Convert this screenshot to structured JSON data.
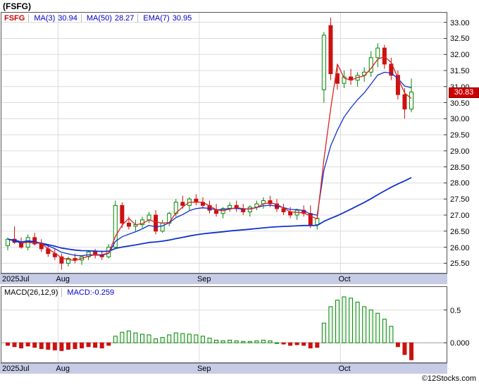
{
  "page": {
    "title": "(FSFG)",
    "footer": "©12Stocks.com"
  },
  "colors": {
    "up": "#008800",
    "up_fill": "#ffffff",
    "down": "#cc1111",
    "ma_fast": "#dd2222",
    "ma_slow": "#1133cc",
    "ema": "#1133cc",
    "band": "#c7cce6",
    "grid": "#dcdcdc",
    "zero_line": "#999999",
    "last_price_bg": "#cc0000",
    "macd_pos": "#008800",
    "macd_pos_fill": "#eef7ee",
    "macd_neg": "#cc1111"
  },
  "chart_data": [
    {
      "type": "candlestick",
      "title": "FSFG",
      "legend": {
        "symbol": "FSFG",
        "ma3_label": "MA(3)",
        "ma3_value": "30.94",
        "ma50_label": "MA(50)",
        "ma50_value": "28.27",
        "ema7_label": "EMA(7)",
        "ema7_value": "30.95"
      },
      "overlays": [
        "MA(3)",
        "MA(50)",
        "EMA(7)"
      ],
      "ylim": [
        25.2,
        33.3
      ],
      "y_tick_values": [
        33.0,
        32.5,
        32.0,
        31.5,
        31.0,
        30.5,
        30.0,
        29.5,
        29.0,
        28.5,
        28.0,
        27.5,
        27.0,
        26.5,
        26.0,
        25.5
      ],
      "x_ticks": [
        {
          "label": "2025Jul",
          "index": 0
        },
        {
          "label": "Aug",
          "index": 8
        },
        {
          "label": "Sep",
          "index": 29
        },
        {
          "label": "Oct",
          "index": 50
        }
      ],
      "last_price_label": "30.83",
      "candles": [
        [
          26.05,
          26.3,
          25.9,
          26.25
        ],
        [
          26.25,
          26.65,
          26.1,
          26.15
        ],
        [
          26.15,
          26.3,
          25.95,
          26.0
        ],
        [
          26.0,
          26.4,
          25.9,
          26.3
        ],
        [
          26.3,
          26.45,
          26.05,
          26.1
        ],
        [
          26.1,
          26.25,
          25.85,
          25.95
        ],
        [
          25.95,
          26.1,
          25.7,
          25.8
        ],
        [
          25.8,
          25.95,
          25.6,
          25.7
        ],
        [
          25.7,
          25.8,
          25.3,
          25.5
        ],
        [
          25.5,
          25.7,
          25.4,
          25.65
        ],
        [
          25.65,
          25.8,
          25.5,
          25.6
        ],
        [
          25.6,
          25.75,
          25.45,
          25.7
        ],
        [
          25.7,
          25.9,
          25.6,
          25.85
        ],
        [
          25.85,
          25.95,
          25.65,
          25.75
        ],
        [
          25.75,
          25.9,
          25.6,
          25.7
        ],
        [
          25.7,
          26.1,
          25.65,
          26.0
        ],
        [
          26.0,
          27.45,
          25.95,
          27.3
        ],
        [
          27.3,
          27.4,
          26.6,
          26.75
        ],
        [
          26.75,
          26.95,
          26.55,
          26.65
        ],
        [
          26.65,
          26.85,
          26.5,
          26.7
        ],
        [
          26.7,
          26.95,
          26.6,
          26.85
        ],
        [
          26.85,
          27.1,
          26.75,
          27.0
        ],
        [
          27.0,
          27.15,
          26.4,
          26.5
        ],
        [
          26.5,
          26.85,
          26.45,
          26.75
        ],
        [
          26.75,
          27.1,
          26.65,
          27.05
        ],
        [
          27.05,
          27.5,
          26.95,
          27.4
        ],
        [
          27.4,
          27.6,
          27.2,
          27.3
        ],
        [
          27.3,
          27.55,
          27.15,
          27.5
        ],
        [
          27.5,
          27.65,
          27.3,
          27.4
        ],
        [
          27.4,
          27.55,
          27.2,
          27.3
        ],
        [
          27.3,
          27.45,
          27.05,
          27.15
        ],
        [
          27.15,
          27.35,
          26.95,
          27.05
        ],
        [
          27.05,
          27.25,
          26.9,
          27.2
        ],
        [
          27.2,
          27.4,
          27.1,
          27.3
        ],
        [
          27.3,
          27.45,
          27.1,
          27.2
        ],
        [
          27.2,
          27.35,
          27.0,
          27.1
        ],
        [
          27.1,
          27.3,
          26.95,
          27.25
        ],
        [
          27.25,
          27.45,
          27.15,
          27.35
        ],
        [
          27.35,
          27.55,
          27.2,
          27.45
        ],
        [
          27.45,
          27.6,
          27.25,
          27.35
        ],
        [
          27.35,
          27.5,
          27.1,
          27.2
        ],
        [
          27.2,
          27.35,
          27.0,
          27.1
        ],
        [
          27.1,
          27.25,
          26.9,
          27.0
        ],
        [
          27.0,
          27.2,
          26.85,
          27.15
        ],
        [
          27.15,
          27.3,
          26.95,
          27.05
        ],
        [
          27.05,
          27.3,
          26.6,
          26.7
        ],
        [
          26.7,
          27.0,
          26.55,
          26.9
        ],
        [
          30.9,
          32.7,
          30.5,
          32.6
        ],
        [
          32.9,
          33.15,
          31.2,
          31.4
        ],
        [
          31.4,
          31.7,
          30.9,
          31.1
        ],
        [
          31.1,
          31.5,
          30.95,
          31.3
        ],
        [
          31.3,
          31.55,
          31.05,
          31.2
        ],
        [
          31.2,
          31.45,
          31.0,
          31.35
        ],
        [
          31.35,
          31.6,
          31.15,
          31.45
        ],
        [
          31.45,
          32.1,
          31.3,
          31.9
        ],
        [
          31.9,
          32.35,
          31.6,
          32.2
        ],
        [
          32.2,
          32.3,
          31.55,
          31.7
        ],
        [
          31.7,
          31.9,
          31.2,
          31.35
        ],
        [
          31.35,
          31.5,
          30.6,
          30.75
        ],
        [
          30.75,
          30.95,
          30.0,
          30.3
        ],
        [
          30.3,
          31.25,
          30.2,
          30.83
        ]
      ]
    },
    {
      "type": "bar",
      "title": "MACD(26,12,9)",
      "value_label": "MACD:-0.259",
      "ylim": [
        -0.3,
        0.85
      ],
      "y_ticks": [
        {
          "value": 0.5,
          "label": "0.5"
        },
        {
          "value": 0,
          "label": "0.000"
        }
      ],
      "x_ticks": [
        {
          "label": "2025Jul",
          "index": 0
        },
        {
          "label": "Aug",
          "index": 8
        },
        {
          "label": "Sep",
          "index": 29
        },
        {
          "label": "Oct",
          "index": 50
        }
      ],
      "values": [
        -0.04,
        -0.06,
        -0.08,
        -0.05,
        -0.07,
        -0.09,
        -0.1,
        -0.11,
        -0.12,
        -0.1,
        -0.09,
        -0.08,
        -0.06,
        -0.07,
        -0.08,
        -0.04,
        0.1,
        0.16,
        0.18,
        0.15,
        0.13,
        0.12,
        0.06,
        0.08,
        0.12,
        0.15,
        0.14,
        0.13,
        0.12,
        0.1,
        0.07,
        0.04,
        0.03,
        0.04,
        0.03,
        0.02,
        0.02,
        0.03,
        0.04,
        0.03,
        0.0,
        -0.02,
        -0.04,
        -0.03,
        -0.04,
        -0.08,
        -0.07,
        0.3,
        0.55,
        0.65,
        0.7,
        0.68,
        0.62,
        0.55,
        0.5,
        0.45,
        0.36,
        0.25,
        -0.06,
        -0.18,
        -0.26
      ]
    }
  ]
}
